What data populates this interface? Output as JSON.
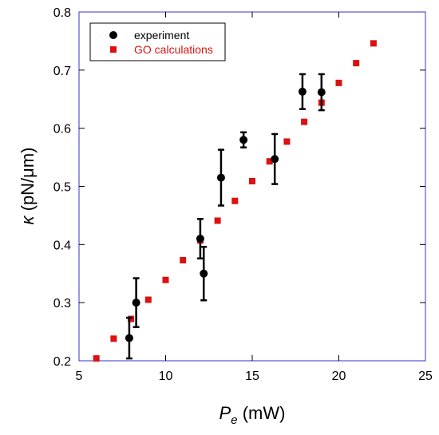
{
  "chart_data": {
    "type": "scatter",
    "title": "",
    "xlabel": {
      "symbol": "P",
      "subscript": "e",
      "unit": " (mW)"
    },
    "ylabel": {
      "symbol": "κ",
      "unit": " (pN/μm)"
    },
    "xlim": [
      5,
      25
    ],
    "ylim": [
      0.2,
      0.8
    ],
    "x_ticks": [
      5,
      10,
      15,
      20,
      25
    ],
    "y_ticks": [
      0.2,
      0.3,
      0.4,
      0.5,
      0.6,
      0.7,
      0.8
    ],
    "y_tick_labels": [
      "0.2",
      "0.3",
      "0.4",
      "0.5",
      "0.6",
      "0.7",
      "0.8"
    ],
    "grid": false,
    "legend_position": "top-left",
    "series": [
      {
        "name": "experiment",
        "color": "#000000",
        "marker": "circle",
        "points": [
          {
            "x": 7.9,
            "y": 0.239,
            "err": 0.035
          },
          {
            "x": 8.3,
            "y": 0.3,
            "err": 0.042
          },
          {
            "x": 12.0,
            "y": 0.41,
            "err": 0.034
          },
          {
            "x": 12.2,
            "y": 0.35,
            "err": 0.046
          },
          {
            "x": 13.2,
            "y": 0.515,
            "err": 0.048
          },
          {
            "x": 14.5,
            "y": 0.58,
            "err": 0.013
          },
          {
            "x": 16.3,
            "y": 0.547,
            "err": 0.043
          },
          {
            "x": 17.9,
            "y": 0.663,
            "err": 0.03
          },
          {
            "x": 19.0,
            "y": 0.662,
            "err": 0.031
          }
        ]
      },
      {
        "name": "GO calculations",
        "color": "#dd1111",
        "marker": "square",
        "points": [
          {
            "x": 6,
            "y": 0.204
          },
          {
            "x": 7,
            "y": 0.238
          },
          {
            "x": 8,
            "y": 0.272
          },
          {
            "x": 9,
            "y": 0.305
          },
          {
            "x": 10,
            "y": 0.339
          },
          {
            "x": 11,
            "y": 0.373
          },
          {
            "x": 12,
            "y": 0.407
          },
          {
            "x": 13,
            "y": 0.441
          },
          {
            "x": 14,
            "y": 0.475
          },
          {
            "x": 15,
            "y": 0.509
          },
          {
            "x": 16,
            "y": 0.543
          },
          {
            "x": 17,
            "y": 0.577
          },
          {
            "x": 18,
            "y": 0.611
          },
          {
            "x": 19,
            "y": 0.644
          },
          {
            "x": 20,
            "y": 0.678
          },
          {
            "x": 21,
            "y": 0.712
          },
          {
            "x": 22,
            "y": 0.746
          }
        ]
      }
    ]
  }
}
